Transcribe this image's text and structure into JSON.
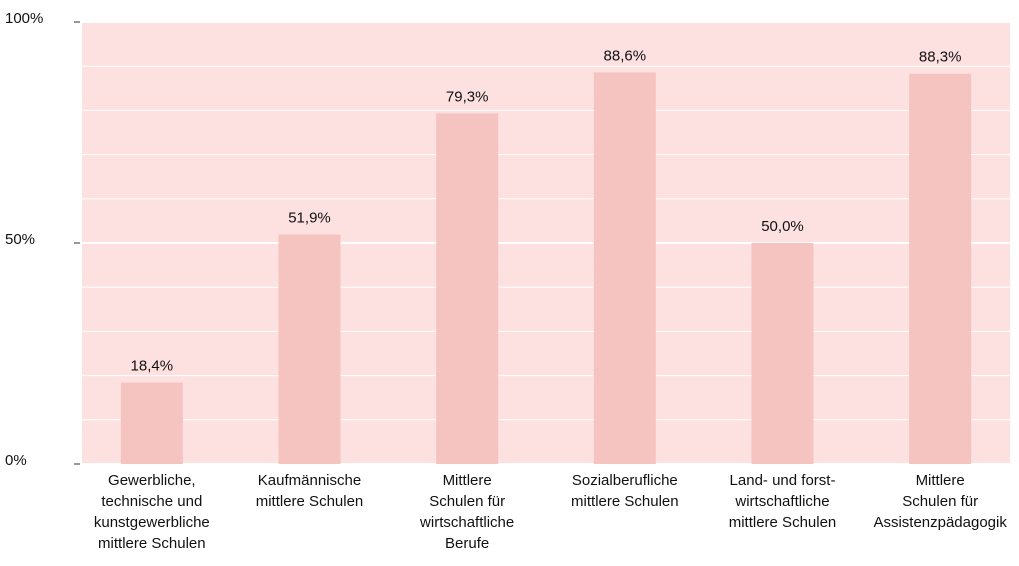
{
  "chart_data": {
    "type": "bar",
    "categories": [
      "Gewerbliche,\ntechnische und\nkunstgewerbliche\nmittlere Schulen",
      "Kaufmännische\nmittlere Schulen",
      "Mittlere\nSchulen für\nwirtschaftliche\nBerufe",
      "Sozialberufliche\nmittlere Schulen",
      "Land- und forst-\nwirtschaftliche\nmittlere Schulen",
      "Mittlere\nSchulen für\nAssistenzpädagogik"
    ],
    "values": [
      18.4,
      51.9,
      79.3,
      88.6,
      50.0,
      88.3
    ],
    "value_labels": [
      "18,4%",
      "51,9%",
      "79,3%",
      "88,6%",
      "50,0%",
      "88,3%"
    ],
    "color": "#f5c4c0",
    "ylim": [
      0,
      100
    ],
    "yticks": [
      {
        "value": 0,
        "label": "0%"
      },
      {
        "value": 50,
        "label": "50%"
      },
      {
        "value": 100,
        "label": "100%"
      }
    ],
    "minor_yticks": [
      10,
      20,
      30,
      40,
      60,
      70,
      80,
      90
    ],
    "grid": true
  }
}
